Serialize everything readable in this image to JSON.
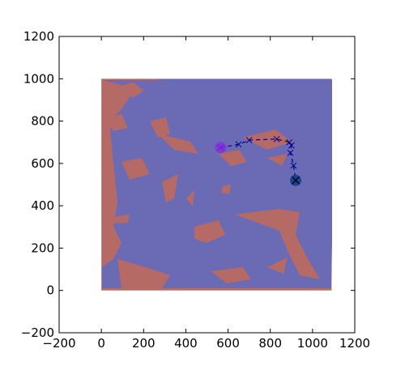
{
  "chart_data": {
    "type": "scatter",
    "title": "",
    "xlabel": "",
    "ylabel": "",
    "xlim": [
      -200,
      1200
    ],
    "ylim": [
      -200,
      1200
    ],
    "xticks": [
      -200,
      0,
      200,
      400,
      600,
      800,
      1000,
      1200
    ],
    "yticks": [
      -200,
      0,
      200,
      400,
      600,
      800,
      1000,
      1200
    ],
    "xtick_labels": [
      "−200",
      "0",
      "200",
      "400",
      "600",
      "800",
      "1000",
      "1200"
    ],
    "ytick_labels": [
      "−200",
      "0",
      "200",
      "400",
      "600",
      "800",
      "1000",
      "1200"
    ],
    "grid": false,
    "map": {
      "extent_x": [
        0,
        1090
      ],
      "extent_y": [
        0,
        1000
      ],
      "obstacle_color": "#b56a66",
      "free_color": "#6a6ab5"
    },
    "path": {
      "x": [
        565,
        650,
        700,
        830,
        890,
        900,
        895,
        910,
        920
      ],
      "y": [
        675,
        690,
        710,
        715,
        700,
        685,
        650,
        590,
        520
      ],
      "color": "#00008b",
      "linestyle": "dashed",
      "marker": "x"
    },
    "start": {
      "x": 565,
      "y": 675,
      "color": "#8a2be2"
    },
    "goal": {
      "x": 920,
      "y": 520,
      "color": "#0b3d91"
    }
  }
}
